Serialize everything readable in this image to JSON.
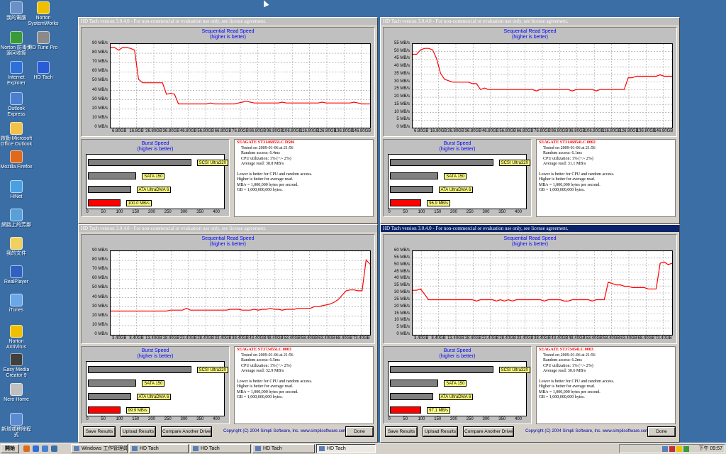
{
  "desktop_icons": [
    {
      "name": "desktop-icon-my-computer",
      "label": "我的電腦",
      "color": "#6b8fc7"
    },
    {
      "name": "desktop-icon-norton-systemworks",
      "label": "Norton\nSystemWorks",
      "color": "#f0c000"
    },
    {
      "name": "desktop-icon-norton-av",
      "label": "Norton 防毒資\n源回收筒",
      "color": "#3a9a3a"
    },
    {
      "name": "desktop-icon-hd-tune",
      "label": "HD Tune Pro",
      "color": "#8a8a8a"
    },
    {
      "name": "desktop-icon-ie",
      "label": "Internet\nExplorer",
      "color": "#2e6fd8"
    },
    {
      "name": "desktop-icon-hd-tach",
      "label": "HD Tach",
      "color": "#2a5bd6"
    },
    {
      "name": "desktop-icon-outlook-express",
      "label": "Outlook\nExpress",
      "color": "#4a7fd0"
    },
    {
      "name": "desktop-icon-office-outlook",
      "label": "啟動 Microsoft\nOffice Outlook",
      "color": "#f3c24b"
    },
    {
      "name": "desktop-icon-firefox",
      "label": "Mozilla Firefox",
      "color": "#e06a1a"
    },
    {
      "name": "desktop-icon-hinet",
      "label": "HiNet",
      "color": "#4aa0e0"
    },
    {
      "name": "desktop-icon-network",
      "label": "網路上的芳鄰",
      "color": "#5aa0d8"
    },
    {
      "name": "desktop-icon-my-documents",
      "label": "我的文件",
      "color": "#f0d060"
    },
    {
      "name": "desktop-icon-realplayer",
      "label": "RealPlayer",
      "color": "#3060c0"
    },
    {
      "name": "desktop-icon-itunes",
      "label": "iTunes",
      "color": "#6aa6e8"
    },
    {
      "name": "desktop-icon-norton-antivirus",
      "label": "Norton\nAntiVirus",
      "color": "#f0c000"
    },
    {
      "name": "desktop-icon-easy-media-creator",
      "label": "Easy Media\nCreator 9",
      "color": "#404040"
    },
    {
      "name": "desktop-icon-nero-home",
      "label": "Nero Home",
      "color": "#c0c0c0"
    },
    {
      "name": "desktop-icon-new-shortcut",
      "label": "新增或移除程\n式",
      "color": "#5a8ad0"
    }
  ],
  "windows": [
    {
      "title": "HD Tach version 3.0.4.0 - For non-commercial or evaluation use only, see license agreement.",
      "active": false,
      "chart_title": "Sequential Read Speed",
      "chart_subtitle": "(higher is better)",
      "y_ticks": [
        "90 MB/s",
        "80 MB/s",
        "70 MB/s",
        "60 MB/s",
        "50 MB/s",
        "40 MB/s",
        "30 MB/s",
        "20 MB/s",
        "10 MB/s",
        "0 MB/s"
      ],
      "x_ticks": [
        "6.80GB",
        "16.8GB",
        "26.80GB",
        "36.80GB",
        "46.80GB",
        "56.80GB",
        "66.80GB",
        "76.80GB",
        "86.80GB",
        "96.80GB",
        "106.80GB",
        "116.80GB",
        "126.80GB",
        "136.80GB",
        "146.80GB"
      ],
      "burst_title": "Burst Speed",
      "burst_subtitle": "(higher is better)",
      "burst_labels": [
        "SCSI Ultra320",
        "SATA 150",
        "ATA UltraDMA 6",
        "100.0 MB/s"
      ],
      "burst_ticks": [
        "0",
        "50",
        "100",
        "150",
        "200",
        "250",
        "300",
        "350",
        "400"
      ],
      "drive": "SEAGATE ST3146855LC D506",
      "info": [
        "Tested on 2009-01-06 at 21:56",
        "Random access: 6.4ms",
        "CPU utilization: 1% (+/- 2%)",
        "Average read: 38.8 MB/s",
        "",
        "Lower is better for CPU and random access.",
        "Higher is better for average read.",
        "MB/s = 1,000,000 bytes per second.",
        "GB = 1,000,000,000 bytes."
      ]
    },
    {
      "title": "HD Tach version 3.0.4.0 - For non-commercial or evaluation use only, see license agreement.",
      "active": false,
      "chart_title": "Sequential Read Speed",
      "chart_subtitle": "(higher is better)",
      "y_ticks": [
        "55 MB/s",
        "50 MB/s",
        "45 MB/s",
        "40 MB/s",
        "35 MB/s",
        "30 MB/s",
        "25 MB/s",
        "20 MB/s",
        "15 MB/s",
        "10 MB/s",
        "5 MB/s",
        "0 MB/s"
      ],
      "x_ticks": [
        "6.80GB",
        "16.80GB",
        "26.80GB",
        "36.80GB",
        "46.80GB",
        "56.80GB",
        "66.80GB",
        "76.80GB",
        "86.80GB",
        "96.80GB",
        "106.80GB",
        "116.80GB",
        "126.80GB",
        "136.80GB",
        "146.80GB"
      ],
      "burst_title": "Burst Speed",
      "burst_subtitle": "(higher is better)",
      "burst_labels": [
        "SCSI Ultra320",
        "SATA 150",
        "ATA UltraDMA 6",
        "96.9 MB/s"
      ],
      "burst_ticks": [
        "0",
        "50",
        "100",
        "150",
        "200",
        "250",
        "300",
        "350",
        "400"
      ],
      "drive": "SEAGATE ST3146854LC 0002",
      "info": [
        "Tested on 2009-01-06 at 21:56",
        "Random access: 6.1ms",
        "CPU utilization: 1% (+/- 2%)",
        "Average read: 31.1 MB/s",
        "",
        "Lower is better for CPU and random access.",
        "Higher is better for average read.",
        "MB/s = 1,000,000 bytes per second.",
        "GB = 1,000,000,000 bytes."
      ]
    },
    {
      "title": "HD Tach version 3.0.4.0 - For non-commercial or evaluation use only, see license agreement.",
      "active": false,
      "chart_title": "Sequential Read Speed",
      "chart_subtitle": "(higher is better)",
      "y_ticks": [
        "90 MB/s",
        "80 MB/s",
        "70 MB/s",
        "60 MB/s",
        "50 MB/s",
        "40 MB/s",
        "30 MB/s",
        "20 MB/s",
        "10 MB/s",
        "0 MB/s"
      ],
      "x_ticks": [
        "3.40GB",
        "8.40GB",
        "13.40GB",
        "18.40GB",
        "23.40GB",
        "28.40GB",
        "33.40GB",
        "38.40GB",
        "43.40GB",
        "48.40GB",
        "53.40GB",
        "58.40GB",
        "63.40GB",
        "68.40GB",
        "73.40GB"
      ],
      "burst_title": "Burst Speed",
      "burst_subtitle": "(higher is better)",
      "burst_labels": [
        "SCSI Ultra320",
        "SATA 150",
        "ATA UltraDMA 6",
        "99.9 MB/s"
      ],
      "burst_ticks": [
        "0",
        "50",
        "100",
        "150",
        "200",
        "250",
        "300",
        "350",
        "400"
      ],
      "drive": "SEAGATE ST373455LC 0003",
      "info": [
        "Tested on 2009-01-06 at 21:56",
        "Random access: 6.5ms",
        "CPU utilization: 1% (+/- 2%)",
        "Average read: 32.9 MB/s",
        "",
        "Lower is better for CPU and random access.",
        "Higher is better for average read.",
        "MB/s = 1,000,000 bytes per second.",
        "GB = 1,000,000,000 bytes."
      ]
    },
    {
      "title": "HD Tach version 3.0.4.0 - For non-commercial or evaluation use only, see license agreement.",
      "active": true,
      "chart_title": "Sequential Read Speed",
      "chart_subtitle": "(higher is better)",
      "y_ticks": [
        "60 MB/s",
        "55 MB/s",
        "50 MB/s",
        "45 MB/s",
        "40 MB/s",
        "35 MB/s",
        "30 MB/s",
        "25 MB/s",
        "20 MB/s",
        "15 MB/s",
        "10 MB/s",
        "5 MB/s",
        "0 MB/s"
      ],
      "x_ticks": [
        "3.40GB",
        "8.40GB",
        "13.40GB",
        "18.40GB",
        "23.40GB",
        "28.40GB",
        "33.40GB",
        "38.40GB",
        "43.40GB",
        "48.40GB",
        "53.40GB",
        "58.40GB",
        "63.40GB",
        "68.40GB",
        "73.40GB"
      ],
      "burst_title": "Burst Speed",
      "burst_subtitle": "(higher is better)",
      "burst_labels": [
        "SCSI Ultra320",
        "SATA 150",
        "ATA UltraDMA 6",
        "97.1 MB/s"
      ],
      "burst_ticks": [
        "0",
        "50",
        "100",
        "150",
        "200",
        "250",
        "300",
        "350",
        "400"
      ],
      "drive": "SEAGATE ST373454LC 0003",
      "info": [
        "Tested on 2009-01-06 at 21:56",
        "Random access: 6.2ms",
        "CPU utilization: 1% (+/- 2%)",
        "Average read: 30.6 MB/s",
        "",
        "Lower is better for CPU and random access.",
        "Higher is better for average read.",
        "MB/s = 1,000,000 bytes per second.",
        "GB = 1,000,000,000 bytes."
      ]
    }
  ],
  "buttons": {
    "save": "Save Results",
    "upload": "Upload Results",
    "compare": "Compare Another Drive",
    "done": "Done",
    "copyright": "Copyright (C) 2004 Simpli Software, Inc. www.simplisoftware.com"
  },
  "taskbar": {
    "start": "開始",
    "tasks": [
      "Windows 工作管理員",
      "HD Tach",
      "HD Tach",
      "HD Tach",
      "HD Tach"
    ],
    "clock": "下午 09:57"
  },
  "chart_data": [
    {
      "type": "line",
      "title": "Sequential Read Speed",
      "ylabel": "MB/s",
      "ylim": [
        0,
        95
      ],
      "series": [
        {
          "values": [
            91,
            91,
            88,
            91,
            91,
            90,
            88,
            55,
            51,
            51,
            51,
            51,
            51,
            51,
            38,
            39,
            38,
            27,
            27,
            27,
            27,
            27,
            27,
            27,
            27,
            28,
            27,
            27,
            27,
            27,
            27,
            27,
            28,
            29,
            30,
            29,
            28,
            28,
            28,
            28,
            28,
            28,
            28,
            29,
            28,
            28,
            28,
            28,
            28,
            28,
            28,
            28,
            28,
            29,
            28,
            28,
            28,
            28,
            28,
            28,
            28,
            29,
            28,
            27,
            27,
            27
          ]
        }
      ],
      "burst": [
        {
          "label": "SCSI Ultra320",
          "value": 320,
          "color": "#808080"
        },
        {
          "label": "SATA 150",
          "value": 150,
          "color": "#808080"
        },
        {
          "label": "ATA UltraDMA 6",
          "value": 133,
          "color": "#808080"
        },
        {
          "label": "100.0 MB/s",
          "value": 100,
          "color": "#ff0000"
        }
      ],
      "burst_max": 400
    },
    {
      "type": "line",
      "title": "Sequential Read Speed",
      "ylabel": "MB/s",
      "ylim": [
        0,
        57
      ],
      "series": [
        {
          "values": [
            50,
            50,
            53,
            54,
            54,
            53,
            47,
            37,
            33,
            32,
            31,
            31,
            31,
            31,
            31,
            30,
            30,
            26,
            27,
            26,
            26,
            26,
            26,
            26,
            26,
            26,
            26,
            26,
            26,
            26,
            26,
            25,
            26,
            26,
            26,
            26,
            26,
            26,
            26,
            26,
            25,
            26,
            26,
            26,
            26,
            26,
            25,
            26,
            26,
            26,
            26,
            26,
            26,
            26,
            34,
            34,
            35,
            35,
            35,
            35,
            35,
            35,
            36,
            35,
            35,
            35
          ]
        }
      ],
      "burst": [
        {
          "label": "SCSI Ultra320",
          "value": 320,
          "color": "#808080"
        },
        {
          "label": "SATA 150",
          "value": 150,
          "color": "#808080"
        },
        {
          "label": "ATA UltraDMA 6",
          "value": 133,
          "color": "#808080"
        },
        {
          "label": "96.9 MB/s",
          "value": 97,
          "color": "#ff0000"
        }
      ],
      "burst_max": 400
    },
    {
      "type": "line",
      "title": "Sequential Read Speed",
      "ylabel": "MB/s",
      "ylim": [
        0,
        95
      ],
      "series": [
        {
          "values": [
            27,
            27,
            27,
            27,
            27,
            27,
            27,
            27,
            27,
            27,
            27,
            27,
            27,
            27,
            27,
            28,
            28,
            28,
            28,
            30,
            28,
            28,
            28,
            28,
            28,
            28,
            28,
            28,
            28,
            28,
            29,
            29,
            29,
            28,
            28,
            28,
            29,
            28,
            29,
            29,
            30,
            29,
            29,
            28,
            29,
            29,
            29,
            30,
            30,
            30,
            30,
            32,
            32,
            33,
            34,
            35,
            37,
            40,
            45,
            50,
            51,
            51,
            50,
            50,
            85,
            80
          ]
        }
      ],
      "burst": [
        {
          "label": "SCSI Ultra320",
          "value": 320,
          "color": "#808080"
        },
        {
          "label": "SATA 150",
          "value": 150,
          "color": "#808080"
        },
        {
          "label": "ATA UltraDMA 6",
          "value": 133,
          "color": "#808080"
        },
        {
          "label": "99.9 MB/s",
          "value": 100,
          "color": "#ff0000"
        }
      ],
      "burst_max": 400
    },
    {
      "type": "line",
      "title": "Sequential Read Speed",
      "ylabel": "MB/s",
      "ylim": [
        0,
        62
      ],
      "series": [
        {
          "values": [
            33,
            33,
            34,
            30,
            26,
            26,
            26,
            26,
            26,
            26,
            26,
            26,
            26,
            26,
            26,
            26,
            25,
            26,
            26,
            26,
            26,
            25,
            26,
            25,
            26,
            25,
            26,
            26,
            26,
            26,
            26,
            26,
            26,
            25,
            26,
            26,
            26,
            26,
            25,
            25,
            26,
            26,
            26,
            26,
            26,
            25,
            26,
            26,
            26,
            39,
            38,
            37,
            37,
            36,
            36,
            35,
            35,
            35,
            35,
            34,
            34,
            34,
            53,
            54,
            52,
            53
          ]
        }
      ],
      "burst": [
        {
          "label": "SCSI Ultra320",
          "value": 320,
          "color": "#808080"
        },
        {
          "label": "SATA 150",
          "value": 150,
          "color": "#808080"
        },
        {
          "label": "ATA UltraDMA 6",
          "value": 133,
          "color": "#808080"
        },
        {
          "label": "97.1 MB/s",
          "value": 97,
          "color": "#ff0000"
        }
      ],
      "burst_max": 400
    }
  ]
}
